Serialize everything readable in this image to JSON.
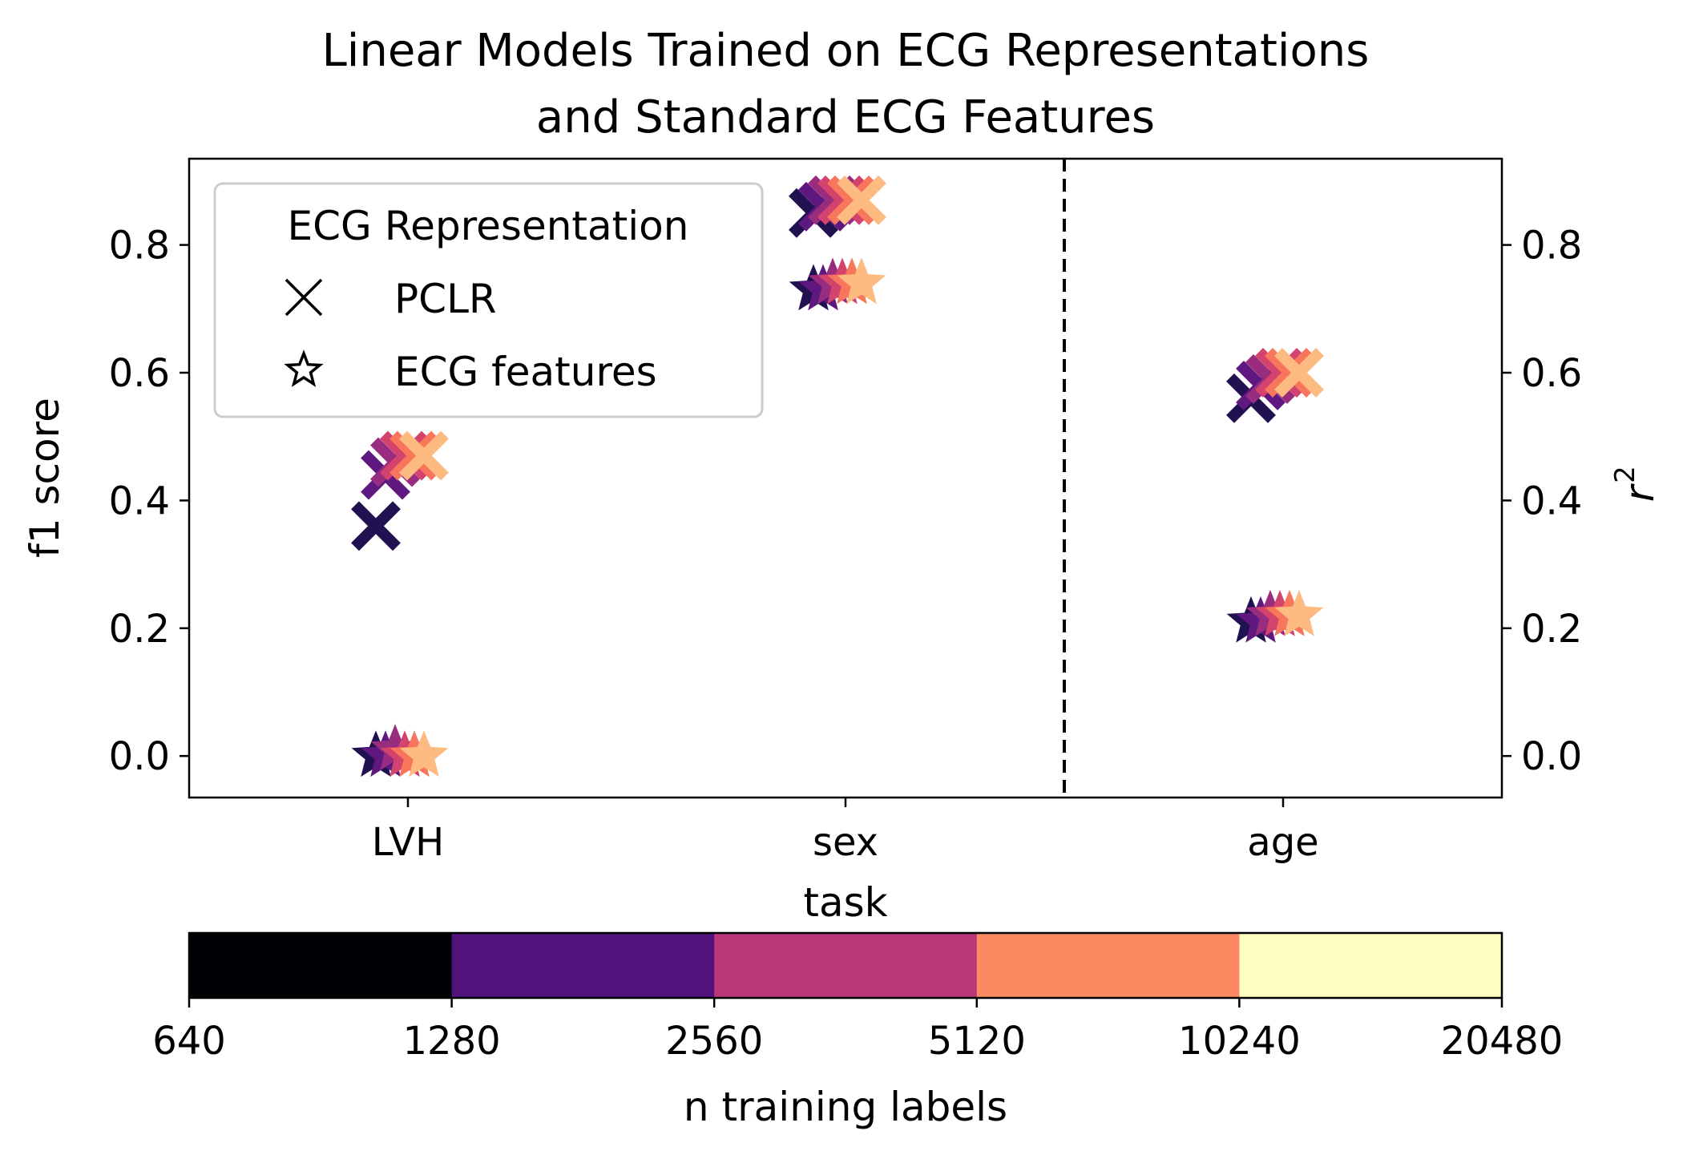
{
  "chart_data": {
    "type": "scatter",
    "title_lines": [
      "Linear Models Trained on ECG Representations",
      "and Standard ECG Features"
    ],
    "xlabel": "task",
    "ylabel_left": "f1 score",
    "ylabel_right": "r",
    "ylabel_right_sup": "2",
    "categories": [
      "LVH",
      "sex",
      "age"
    ],
    "ylim": [
      -0.065,
      0.935
    ],
    "yticks": [
      0.0,
      0.2,
      0.4,
      0.6,
      0.8
    ],
    "ytick_labels": [
      "0.0",
      "0.2",
      "0.4",
      "0.6",
      "0.8"
    ],
    "divider_between": [
      "sex",
      "age"
    ],
    "legend": {
      "title": "ECG Representation",
      "placement": "upper-left",
      "entries": [
        {
          "label": "PCLR",
          "marker": "x"
        },
        {
          "label": "ECG features",
          "marker": "star"
        }
      ]
    },
    "colorbar": {
      "label": "n training labels",
      "tick_labels": [
        "640",
        "1280",
        "2560",
        "5120",
        "10240",
        "20480"
      ],
      "colors": [
        "#000004",
        "#51127c",
        "#b73779",
        "#fc8961",
        "#fcfdbf"
      ]
    },
    "marker_colors": [
      "#221150",
      "#5f187f",
      "#982d80",
      "#d3436e",
      "#f8765c",
      "#febb81"
    ],
    "series": [
      {
        "name": "PCLR",
        "marker": "x",
        "category": "LVH",
        "values": [
          0.36,
          0.44,
          0.46,
          0.47,
          0.47,
          0.47
        ]
      },
      {
        "name": "ECG features",
        "marker": "star",
        "category": "LVH",
        "values": [
          0.0,
          0.0,
          0.01,
          0.0,
          0.0,
          0.0
        ]
      },
      {
        "name": "PCLR",
        "marker": "x",
        "category": "sex",
        "values": [
          0.85,
          0.86,
          0.87,
          0.87,
          0.87,
          0.87
        ]
      },
      {
        "name": "ECG features",
        "marker": "star",
        "category": "sex",
        "values": [
          0.73,
          0.73,
          0.74,
          0.74,
          0.74,
          0.74
        ]
      },
      {
        "name": "PCLR",
        "marker": "x",
        "category": "age",
        "values": [
          0.56,
          0.58,
          0.59,
          0.6,
          0.6,
          0.6
        ]
      },
      {
        "name": "ECG features",
        "marker": "star",
        "category": "age",
        "values": [
          0.21,
          0.21,
          0.22,
          0.22,
          0.22,
          0.22
        ]
      }
    ]
  }
}
